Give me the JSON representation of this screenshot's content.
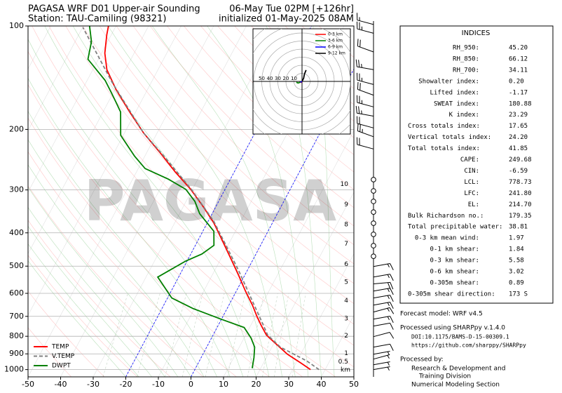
{
  "chart_data": {
    "type": "skewt",
    "title_left": [
      "PAGASA WRF D01 Upper-air Sounding",
      "Station: TAU-Camiling (98321)"
    ],
    "title_right": [
      "06-May Tue 02PM [+126hr]",
      "initialized 01-May-2025 08AM"
    ],
    "watermark": "PAGASA",
    "xlim": [
      -50,
      50
    ],
    "xticks": [
      -50,
      -40,
      -30,
      -20,
      -10,
      0,
      10,
      20,
      30,
      40,
      50
    ],
    "ylim": [
      1050,
      100
    ],
    "yticks": [
      100,
      200,
      300,
      400,
      500,
      600,
      700,
      800,
      900,
      1000
    ],
    "log_y": true,
    "grid": true,
    "highlight_isotherms": [
      0,
      -20
    ],
    "highlight_color": "#0000ff",
    "legend": "lower left",
    "series": [
      {
        "name": "TEMP",
        "color": "#ff0000",
        "dashed": false,
        "pressure": [
          1000,
          959,
          902,
          840,
          794,
          747,
          703,
          649,
          591,
          530,
          478,
          425,
          374,
          336,
          299,
          266,
          236,
          205,
          178,
          153,
          134,
          120,
          106,
          100
        ],
        "values": [
          35.5,
          31.7,
          25.9,
          20.6,
          16.4,
          13.4,
          10.6,
          7.2,
          2.8,
          -2.0,
          -6.7,
          -12.1,
          -18.0,
          -23.8,
          -30.5,
          -38.1,
          -45.3,
          -54.1,
          -61.8,
          -69.7,
          -75.7,
          -79.0,
          -81.4,
          -82.3
        ]
      },
      {
        "name": "V.TEMP",
        "color": "#808080",
        "dashed": true,
        "pressure": [
          1000,
          945,
          860,
          794,
          713,
          605,
          513,
          425,
          370,
          299,
          236,
          205,
          146,
          101
        ],
        "values": [
          38.1,
          33.1,
          22.6,
          16.8,
          12.0,
          4.6,
          -2.8,
          -11.7,
          -18.3,
          -30.3,
          -45.0,
          -54.1,
          -72.0,
          -89.9
        ]
      },
      {
        "name": "DWPT",
        "color": "#008000",
        "dashed": false,
        "pressure": [
          991,
          923,
          860,
          809,
          754,
          713,
          664,
          619,
          538,
          483,
          461,
          435,
          396,
          352,
          324,
          299,
          279,
          260,
          239,
          208,
          178,
          166,
          155,
          144,
          125,
          111,
          100
        ],
        "values": [
          17.4,
          16.2,
          14.7,
          12.1,
          8.3,
          -0.2,
          -10.5,
          -18.7,
          -26.4,
          -20.4,
          -16.6,
          -14.3,
          -16.6,
          -23.8,
          -27.3,
          -32.0,
          -39.1,
          -47.9,
          -53.2,
          -60.8,
          -64.6,
          -67.8,
          -71.0,
          -74.5,
          -83.2,
          -85.0,
          -88.1
        ]
      }
    ],
    "height_labels": {
      "labels": [
        "10",
        "9",
        "8",
        "7",
        "6",
        "5",
        "4",
        "3",
        "2",
        "1",
        "0.5"
      ],
      "pressure": [
        289,
        331,
        378,
        431,
        494,
        556,
        631,
        710,
        798,
        898,
        950
      ]
    },
    "height_unit": "km",
    "wind_barbs": {
      "pressure": [
        99,
        105,
        119,
        134,
        148,
        159,
        172,
        183,
        198,
        210,
        228,
        280,
        302,
        324,
        348,
        375,
        404,
        436,
        468,
        501,
        538,
        563,
        591,
        619,
        649,
        680,
        713,
        747,
        802,
        860,
        902,
        932,
        968,
        1000
      ],
      "speed": [
        15,
        25,
        20,
        25,
        25,
        20,
        25,
        25,
        20,
        25,
        20,
        0,
        0,
        0,
        0,
        0,
        0,
        0,
        0,
        15,
        15,
        20,
        15,
        15,
        15,
        15,
        15,
        10,
        10,
        10,
        5,
        5,
        5,
        5
      ],
      "direction": [
        285,
        285,
        290,
        280,
        285,
        290,
        285,
        280,
        285,
        290,
        285,
        0,
        0,
        0,
        0,
        0,
        0,
        0,
        0,
        80,
        80,
        85,
        80,
        80,
        80,
        75,
        80,
        80,
        75,
        80,
        80,
        75,
        80,
        80
      ]
    },
    "hodograph": {
      "rings": [
        10,
        20,
        30,
        40,
        50
      ],
      "segments": [
        {
          "name": "0-3 km",
          "color": "#ff0000",
          "u": [
            -2,
            -1,
            0
          ],
          "v": [
            -1,
            -1,
            0
          ]
        },
        {
          "name": "3-6 km",
          "color": "#008000",
          "u": [
            -7,
            -5,
            -2
          ],
          "v": [
            -1,
            -2,
            -1
          ]
        },
        {
          "name": "6-9 km",
          "color": "#0000ff",
          "u": [
            -2,
            0
          ],
          "v": [
            -1,
            0
          ]
        },
        {
          "name": "9-12 km",
          "color": "#000000",
          "u": [
            0,
            2,
            3,
            5
          ],
          "v": [
            0,
            4,
            9,
            14
          ]
        }
      ]
    }
  },
  "indices": {
    "title": "INDICES",
    "rows": [
      [
        "RH_950:",
        "45.20"
      ],
      [
        "RH_850:",
        "66.12"
      ],
      [
        "RH_700:",
        "34.11"
      ],
      [
        "Showalter index:",
        "0.20"
      ],
      [
        "Lifted index:",
        "-1.17"
      ],
      [
        "SWEAT index:",
        "180.88"
      ],
      [
        "K index:",
        "23.29"
      ],
      [
        "Cross totals index:",
        "17.65"
      ],
      [
        "Vertical totals index:",
        "24.20"
      ],
      [
        "Total totals index:",
        "41.85"
      ],
      [
        "CAPE:",
        "249.68"
      ],
      [
        "CIN:",
        "-6.59"
      ],
      [
        "LCL:",
        "778.73"
      ],
      [
        "LFC:",
        "241.80"
      ],
      [
        "EL:",
        "214.70"
      ],
      [
        "Bulk Richardson no.:",
        "179.35"
      ],
      [
        "Total precipitable water:",
        "38.81"
      ],
      [
        "0-3 km mean wind:",
        "1.97"
      ],
      [
        "0-1 km shear:",
        "1.84"
      ],
      [
        "0-3 km shear:",
        "5.58"
      ],
      [
        "0-6 km shear:",
        "3.02"
      ],
      [
        "0-305m shear:",
        "0.89"
      ],
      [
        "0-305m shear direction:",
        "173 S"
      ]
    ]
  },
  "footer": [
    "Forecast model: WRF v4.5",
    "Processed using SHARPpy v.1.4.0",
    "DOI:10.1175/BAMS-D-15-00309.1",
    "https://github.com/sharppy/SHARPpy",
    "Processed by:",
    "Research & Development and",
    "Training Division",
    "Numerical Modeling Section"
  ]
}
